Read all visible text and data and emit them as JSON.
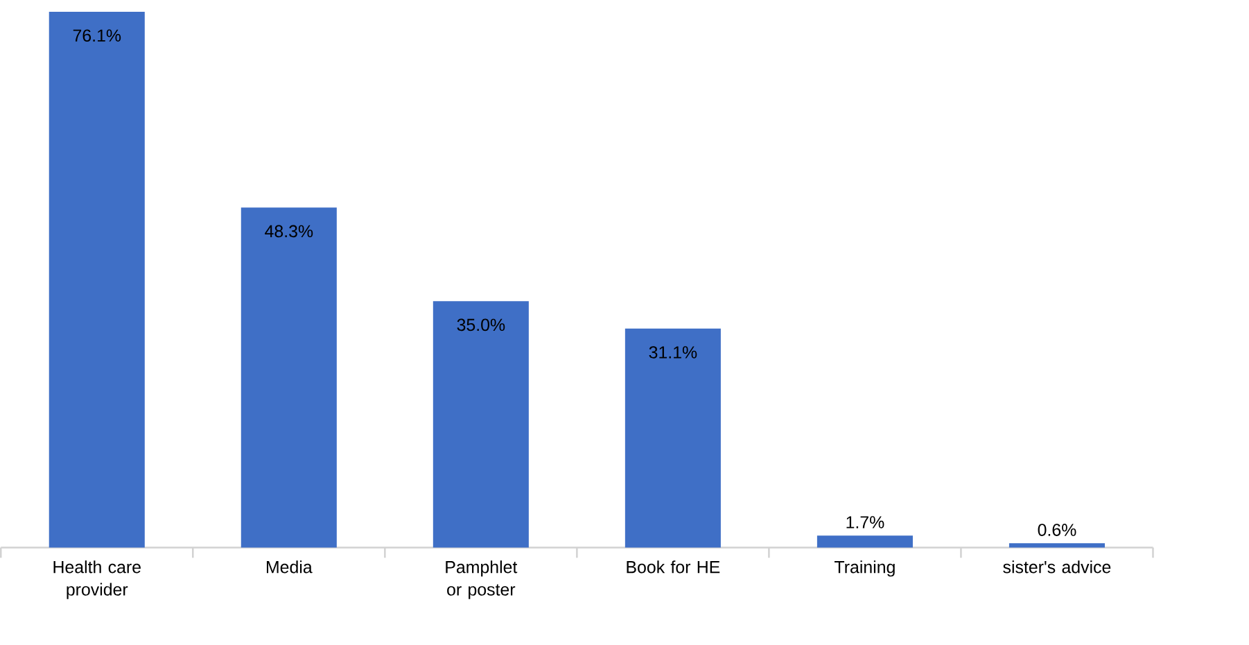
{
  "chart_data": {
    "type": "bar",
    "categories": [
      "Health care provider",
      "Media",
      "Pamphlet or poster",
      "Book for HE",
      "Training",
      "sister's advice"
    ],
    "values": [
      76.1,
      48.3,
      35.0,
      31.1,
      1.7,
      0.6
    ],
    "value_labels": [
      "76.1%",
      "48.3%",
      "35.0%",
      "31.1%",
      "1.7%",
      "0.6%"
    ],
    "color": "#3f6fc6"
  }
}
